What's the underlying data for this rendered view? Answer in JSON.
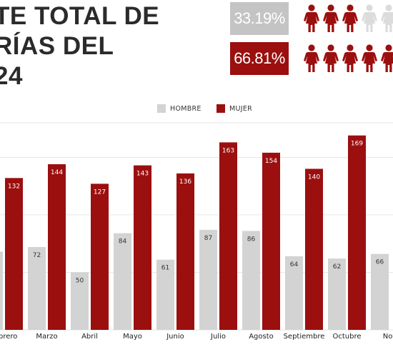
{
  "infographic": {
    "title_lines": [
      "TE TOTAL DE",
      "RÍAS DEL",
      "24"
    ],
    "male_pct": "33.19%",
    "female_pct": "66.81%",
    "male_icon_counts": {
      "filled": 3,
      "empty": 2
    },
    "female_icon_counts": {
      "filled": 5,
      "empty": 0
    },
    "icon": "person-icon"
  },
  "colors": {
    "male": "#d3d3d3",
    "female": "#9b0f0f",
    "male_box": "#c4c4c4",
    "female_box": "#9b0f0f",
    "male_label_text": "#333333",
    "female_label_text": "#ffffff",
    "gridline": "#e6e6e6"
  },
  "legend": {
    "male": "HOMBRE",
    "female": "MUJER",
    "placement": "top-center"
  },
  "chart_data": {
    "type": "bar",
    "categories": [
      "Febrero",
      "Marzo",
      "Abril",
      "Mayo",
      "Junio",
      "Julio",
      "Agosto",
      "Septiembre",
      "Octubre",
      "Nov"
    ],
    "series": [
      {
        "name": "HOMBRE",
        "values": [
          68,
          72,
          50,
          84,
          61,
          87,
          86,
          64,
          62,
          66
        ]
      },
      {
        "name": "MUJER",
        "values": [
          132,
          144,
          127,
          143,
          136,
          163,
          154,
          140,
          169,
          null
        ]
      }
    ],
    "data_labels": {
      "HOMBRE": [
        "68",
        "72",
        "50",
        "84",
        "61",
        "87",
        "86",
        "64",
        "62",
        "66"
      ],
      "MUJER": [
        "132",
        "144",
        "127",
        "143",
        "136",
        "163",
        "154",
        "140",
        "169",
        ""
      ]
    },
    "title": "",
    "xlabel": "",
    "ylabel": "",
    "ylim": [
      0,
      180
    ],
    "grid": true,
    "legend": "top-center"
  }
}
